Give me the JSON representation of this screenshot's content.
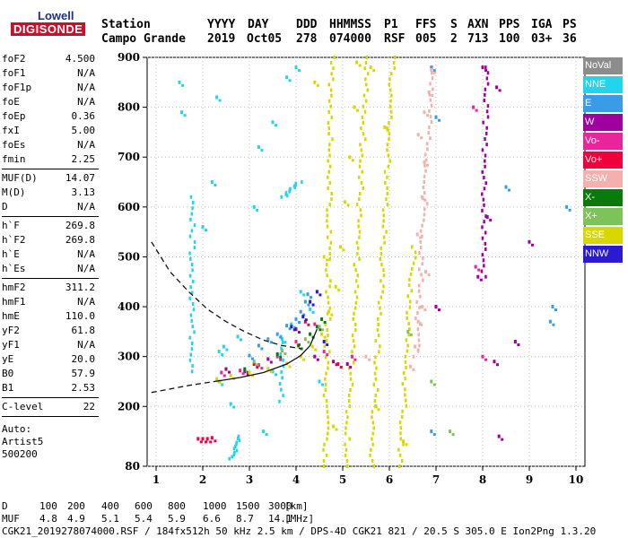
{
  "logo": {
    "line1": "Lowell",
    "line2": "DIGISONDE"
  },
  "header": {
    "labels": [
      "Station",
      "YYYY",
      "DAY",
      "DDD",
      "HHMMSS",
      "P1",
      "FFS",
      "S",
      "AXN",
      "PPS",
      "IGA",
      "PS"
    ],
    "values": [
      "Campo Grande",
      "2019",
      "Oct05",
      "278",
      "074000",
      "RSF",
      "005",
      "2",
      "713",
      "100",
      "03+",
      "36"
    ]
  },
  "params": [
    {
      "k": "foF2",
      "v": "4.500"
    },
    {
      "k": "foF1",
      "v": "N/A"
    },
    {
      "k": "foF1p",
      "v": "N/A"
    },
    {
      "k": "foE",
      "v": "N/A"
    },
    {
      "k": "foEp",
      "v": "0.36"
    },
    {
      "k": "fxI",
      "v": "5.00"
    },
    {
      "k": "foEs",
      "v": "N/A"
    },
    {
      "k": "fmin",
      "v": "2.25"
    },
    {
      "k": "MUF(D)",
      "v": "14.07"
    },
    {
      "k": "M(D)",
      "v": "3.13"
    },
    {
      "k": "D",
      "v": "N/A"
    },
    {
      "k": "h`F",
      "v": "269.8"
    },
    {
      "k": "h`F2",
      "v": "269.8"
    },
    {
      "k": "h`E",
      "v": "N/A"
    },
    {
      "k": "h`Es",
      "v": "N/A"
    },
    {
      "k": "hmF2",
      "v": "311.2"
    },
    {
      "k": "hmF1",
      "v": "N/A"
    },
    {
      "k": "hmE",
      "v": "110.0"
    },
    {
      "k": "yF2",
      "v": "61.8"
    },
    {
      "k": "yF1",
      "v": "N/A"
    },
    {
      "k": "yE",
      "v": "20.0"
    },
    {
      "k": "B0",
      "v": "57.9"
    },
    {
      "k": "B1",
      "v": "2.53"
    },
    {
      "k": "C-level",
      "v": "22"
    },
    {
      "k": "Auto:",
      "v": ""
    },
    {
      "k": "Artist5",
      "v": ""
    },
    {
      "k": "500200",
      "v": ""
    }
  ],
  "legend": [
    {
      "label": "NoVal",
      "color": "#8c8c8c"
    },
    {
      "label": "NNE",
      "color": "#22d4ec"
    },
    {
      "label": "E",
      "color": "#3a9be6"
    },
    {
      "label": "W",
      "color": "#a0009f"
    },
    {
      "label": "Vo-",
      "color": "#e8259a"
    },
    {
      "label": "Vo+",
      "color": "#f2003c"
    },
    {
      "label": "SSW",
      "color": "#f4b0ac"
    },
    {
      "label": "X-",
      "color": "#0a7a0a"
    },
    {
      "label": "X+",
      "color": "#7dc35a"
    },
    {
      "label": "SSE",
      "color": "#d8d800"
    },
    {
      "label": "NNW",
      "color": "#2a1ad2"
    }
  ],
  "footer": {
    "d_label": "D",
    "d_values": [
      "100",
      "200",
      "400",
      "600",
      "800",
      "1000",
      "1500",
      "3000",
      "[km]"
    ],
    "muf_label": "MUF",
    "muf_values": [
      "4.8",
      "4.9",
      "5.1",
      "5.4",
      "5.9",
      "6.6",
      "8.7",
      "14.1",
      "[MHz]"
    ],
    "info": "CGK21_2019278074000.RSF / 184fx512h 50 kHz 2.5 km / DPS-4D CGK21 821 / 20.5 S 305.0 E Ion2Png 1.3.20"
  },
  "chart_data": {
    "type": "scatter",
    "x_ticks": [
      1,
      2,
      3,
      4,
      5,
      6,
      7,
      8,
      9,
      10
    ],
    "y_ticks": [
      80,
      200,
      300,
      400,
      500,
      600,
      700,
      800,
      900
    ],
    "xlim": [
      0.9,
      10.1
    ],
    "ylim": [
      80,
      900
    ],
    "grid": true,
    "legend_position": "right",
    "series": [
      {
        "color_key": "NNE",
        "points": [
          [
            2.35,
            310
          ],
          [
            2.35,
            250
          ],
          [
            2.45,
            320
          ],
          [
            2.6,
            205
          ],
          [
            2.75,
            340
          ],
          [
            3.5,
            270
          ],
          [
            3.7,
            335
          ],
          [
            3.9,
            365
          ],
          [
            4.1,
            430
          ],
          [
            4.3,
            395
          ],
          [
            3.2,
            720
          ],
          [
            3.5,
            770
          ],
          [
            3.8,
            860
          ],
          [
            1.5,
            850
          ],
          [
            1.55,
            790
          ],
          [
            2.2,
            650
          ],
          [
            2.0,
            560
          ],
          [
            2.3,
            820
          ],
          [
            4.0,
            880
          ],
          [
            3.1,
            600
          ],
          [
            4.5,
            250
          ],
          [
            3.3,
            150
          ]
        ]
      },
      {
        "color_key": "E",
        "points": [
          [
            3.4,
            335
          ],
          [
            3.6,
            345
          ],
          [
            3.8,
            362
          ],
          [
            4.0,
            375
          ],
          [
            4.1,
            390
          ],
          [
            4.2,
            410
          ],
          [
            4.25,
            425
          ],
          [
            6.9,
            880
          ],
          [
            7.0,
            780
          ],
          [
            9.45,
            370
          ],
          [
            9.5,
            400
          ],
          [
            8.5,
            640
          ],
          [
            9.8,
            600
          ],
          [
            6.9,
            150
          ],
          [
            3.0,
            302
          ],
          [
            3.2,
            322
          ]
        ]
      },
      {
        "color_key": "W",
        "points": [
          [
            2.5,
            275
          ],
          [
            2.9,
            270
          ],
          [
            3.4,
            295
          ],
          [
            4.0,
            355
          ],
          [
            4.4,
            300
          ],
          [
            4.8,
            290
          ],
          [
            5.1,
            285
          ],
          [
            7.9,
            460
          ],
          [
            8.0,
            880
          ],
          [
            8.3,
            840
          ],
          [
            8.1,
            580
          ],
          [
            8.25,
            290
          ],
          [
            8.7,
            330
          ],
          [
            9.0,
            530
          ],
          [
            7.0,
            400
          ],
          [
            8.35,
            140
          ]
        ]
      },
      {
        "color_key": "Vo-",
        "points": [
          [
            2.4,
            268
          ],
          [
            2.8,
            272
          ],
          [
            3.2,
            283
          ],
          [
            3.6,
            300
          ],
          [
            4.0,
            330
          ],
          [
            4.4,
            365
          ],
          [
            4.6,
            310
          ],
          [
            5.2,
            300
          ],
          [
            7.8,
            800
          ],
          [
            7.85,
            480
          ],
          [
            8.0,
            300
          ]
        ]
      },
      {
        "color_key": "Vo+",
        "points": [
          [
            1.9,
            135
          ],
          [
            2.0,
            135
          ],
          [
            2.1,
            135
          ],
          [
            2.2,
            137
          ],
          [
            3.1,
            285
          ],
          [
            4.9,
            285
          ],
          [
            4.2,
            370
          ]
        ]
      },
      {
        "color_key": "SSW",
        "points": [
          [
            6.45,
            280
          ],
          [
            6.55,
            320
          ],
          [
            6.62,
            370
          ],
          [
            6.7,
            400
          ],
          [
            6.78,
            470
          ],
          [
            6.6,
            545
          ],
          [
            6.7,
            620
          ],
          [
            6.75,
            690
          ],
          [
            6.62,
            745
          ],
          [
            6.75,
            790
          ],
          [
            6.85,
            830
          ],
          [
            6.9,
            875
          ],
          [
            5.5,
            300
          ]
        ]
      },
      {
        "color_key": "X-",
        "points": [
          [
            2.9,
            275
          ],
          [
            3.6,
            305
          ],
          [
            4.05,
            322
          ],
          [
            4.3,
            345
          ],
          [
            4.45,
            360
          ],
          [
            4.55,
            375
          ]
        ]
      },
      {
        "color_key": "X+",
        "points": [
          [
            3.1,
            290
          ],
          [
            3.7,
            312
          ],
          [
            4.2,
            335
          ],
          [
            4.5,
            360
          ],
          [
            6.4,
            350
          ],
          [
            6.9,
            250
          ],
          [
            7.3,
            150
          ]
        ]
      },
      {
        "color_key": "SSE",
        "points": [
          [
            2.3,
            255
          ],
          [
            2.6,
            262
          ],
          [
            3.0,
            268
          ],
          [
            3.4,
            276
          ],
          [
            3.8,
            286
          ],
          [
            4.1,
            300
          ],
          [
            4.35,
            320
          ],
          [
            4.55,
            345
          ],
          [
            4.7,
            390
          ],
          [
            4.85,
            440
          ],
          [
            4.95,
            520
          ],
          [
            5.05,
            610
          ],
          [
            5.15,
            700
          ],
          [
            5.25,
            800
          ],
          [
            5.3,
            890
          ],
          [
            5.6,
            880
          ],
          [
            5.9,
            760
          ],
          [
            4.4,
            850
          ],
          [
            4.6,
            500
          ],
          [
            4.8,
            160
          ],
          [
            5.7,
            200
          ],
          [
            6.3,
            130
          ]
        ]
      },
      {
        "color_key": "NNW",
        "points": [
          [
            3.9,
            360
          ],
          [
            4.15,
            380
          ],
          [
            4.3,
            410
          ],
          [
            4.45,
            430
          ],
          [
            4.6,
            330
          ]
        ]
      }
    ],
    "curves": [
      {
        "name": "profile",
        "style": "solid",
        "x": [
          2.25,
          2.8,
          3.3,
          3.8,
          4.1,
          4.3,
          4.45
        ],
        "y": [
          250,
          258,
          268,
          285,
          302,
          322,
          355
        ]
      },
      {
        "name": "extrapolated-top",
        "style": "dashed",
        "x": [
          0.9,
          1.3,
          1.7,
          2.1,
          2.5,
          2.9,
          3.3,
          3.7,
          4.1
        ],
        "y": [
          530,
          470,
          430,
          395,
          370,
          350,
          333,
          322,
          316
        ]
      },
      {
        "name": "extrapolated-bottom",
        "style": "dashed",
        "x": [
          0.9,
          1.3,
          1.7,
          2.1,
          2.25
        ],
        "y": [
          228,
          235,
          242,
          248,
          250
        ]
      }
    ],
    "traces": [
      {
        "color_key": "NNE",
        "x": [
          1.75,
          1.75
        ],
        "y": [
          270,
          620
        ]
      },
      {
        "color_key": "NNE",
        "x": [
          3.7,
          4.05
        ],
        "y": [
          620,
          650
        ]
      },
      {
        "color_key": "NNE",
        "x": [
          3.65,
          3.7
        ],
        "y": [
          210,
          340
        ]
      },
      {
        "color_key": "NNE",
        "x": [
          2.6,
          2.75
        ],
        "y": [
          95,
          140
        ]
      },
      {
        "color_key": "SSE",
        "x": [
          4.6,
          4.75
        ],
        "y": [
          80,
          900
        ]
      },
      {
        "color_key": "SSE",
        "x": [
          5.05,
          5.5
        ],
        "y": [
          80,
          900
        ]
      },
      {
        "color_key": "SSE",
        "x": [
          5.6,
          6.05
        ],
        "y": [
          80,
          900
        ]
      },
      {
        "color_key": "SSE",
        "x": [
          6.2,
          6.5
        ],
        "y": [
          80,
          520
        ]
      },
      {
        "color_key": "SSW",
        "x": [
          6.55,
          6.9
        ],
        "y": [
          300,
          880
        ]
      },
      {
        "color_key": "W",
        "x": [
          8.0,
          8.05
        ],
        "y": [
          460,
          880
        ]
      }
    ]
  }
}
